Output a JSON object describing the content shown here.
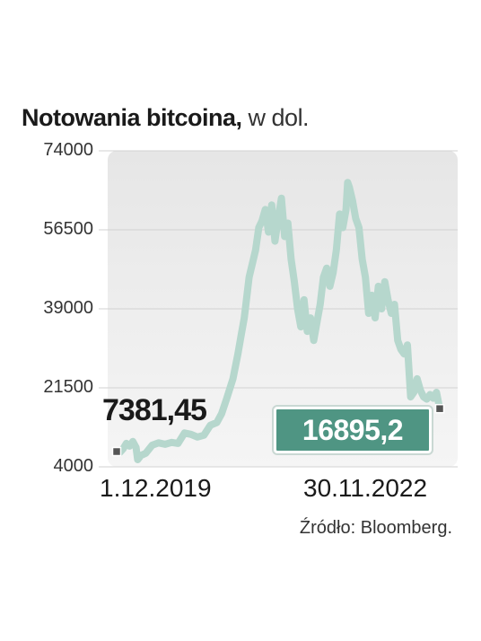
{
  "chart_data": {
    "type": "line",
    "title": "Notowania bitcoina,",
    "unit": "w dol.",
    "yticks": [
      "74000",
      "56500",
      "39000",
      "21500",
      "4000"
    ],
    "ylim": [
      4000,
      74000
    ],
    "xlabels": [
      "1.12.2019",
      "30.11.2022"
    ],
    "series_color": "#b6d7cd",
    "highlight_color": "#4f9583",
    "start_value_label": "7381,45",
    "end_value_label": "16895,2",
    "points": [
      [
        0,
        7381
      ],
      [
        0.01,
        7200
      ],
      [
        0.02,
        8000
      ],
      [
        0.03,
        9200
      ],
      [
        0.04,
        8600
      ],
      [
        0.05,
        9600
      ],
      [
        0.06,
        8300
      ],
      [
        0.065,
        5600
      ],
      [
        0.075,
        6500
      ],
      [
        0.09,
        7000
      ],
      [
        0.11,
        8800
      ],
      [
        0.13,
        9300
      ],
      [
        0.15,
        9000
      ],
      [
        0.17,
        9400
      ],
      [
        0.19,
        9200
      ],
      [
        0.21,
        11500
      ],
      [
        0.23,
        11200
      ],
      [
        0.25,
        10600
      ],
      [
        0.27,
        11000
      ],
      [
        0.29,
        13200
      ],
      [
        0.31,
        13800
      ],
      [
        0.325,
        15800
      ],
      [
        0.34,
        19000
      ],
      [
        0.36,
        23500
      ],
      [
        0.375,
        28900
      ],
      [
        0.385,
        33000
      ],
      [
        0.395,
        37000
      ],
      [
        0.41,
        46000
      ],
      [
        0.42,
        49000
      ],
      [
        0.43,
        52000
      ],
      [
        0.44,
        57000
      ],
      [
        0.45,
        58500
      ],
      [
        0.46,
        61000
      ],
      [
        0.47,
        56000
      ],
      [
        0.48,
        62000
      ],
      [
        0.49,
        54000
      ],
      [
        0.5,
        59000
      ],
      [
        0.51,
        63500
      ],
      [
        0.52,
        55000
      ],
      [
        0.53,
        58000
      ],
      [
        0.54,
        50000
      ],
      [
        0.55,
        45000
      ],
      [
        0.56,
        39000
      ],
      [
        0.57,
        35000
      ],
      [
        0.58,
        41000
      ],
      [
        0.59,
        34000
      ],
      [
        0.6,
        37000
      ],
      [
        0.61,
        32000
      ],
      [
        0.62,
        36000
      ],
      [
        0.63,
        40000
      ],
      [
        0.64,
        46000
      ],
      [
        0.65,
        48000
      ],
      [
        0.66,
        44000
      ],
      [
        0.67,
        47000
      ],
      [
        0.68,
        52000
      ],
      [
        0.69,
        60000
      ],
      [
        0.7,
        57000
      ],
      [
        0.71,
        61000
      ],
      [
        0.715,
        67000
      ],
      [
        0.72,
        66000
      ],
      [
        0.73,
        63000
      ],
      [
        0.74,
        59000
      ],
      [
        0.75,
        57000
      ],
      [
        0.76,
        50000
      ],
      [
        0.77,
        46000
      ],
      [
        0.78,
        38000
      ],
      [
        0.79,
        42000
      ],
      [
        0.8,
        37000
      ],
      [
        0.81,
        44000
      ],
      [
        0.82,
        39000
      ],
      [
        0.83,
        45000
      ],
      [
        0.84,
        41000
      ],
      [
        0.85,
        38000
      ],
      [
        0.86,
        40000
      ],
      [
        0.87,
        32000
      ],
      [
        0.88,
        30000
      ],
      [
        0.89,
        29000
      ],
      [
        0.9,
        31000
      ],
      [
        0.91,
        19500
      ],
      [
        0.92,
        20500
      ],
      [
        0.93,
        23500
      ],
      [
        0.94,
        21000
      ],
      [
        0.95,
        19500
      ],
      [
        0.96,
        19000
      ],
      [
        0.97,
        20000
      ],
      [
        0.98,
        19200
      ],
      [
        0.99,
        20500
      ],
      [
        1.0,
        16895
      ]
    ]
  }
}
